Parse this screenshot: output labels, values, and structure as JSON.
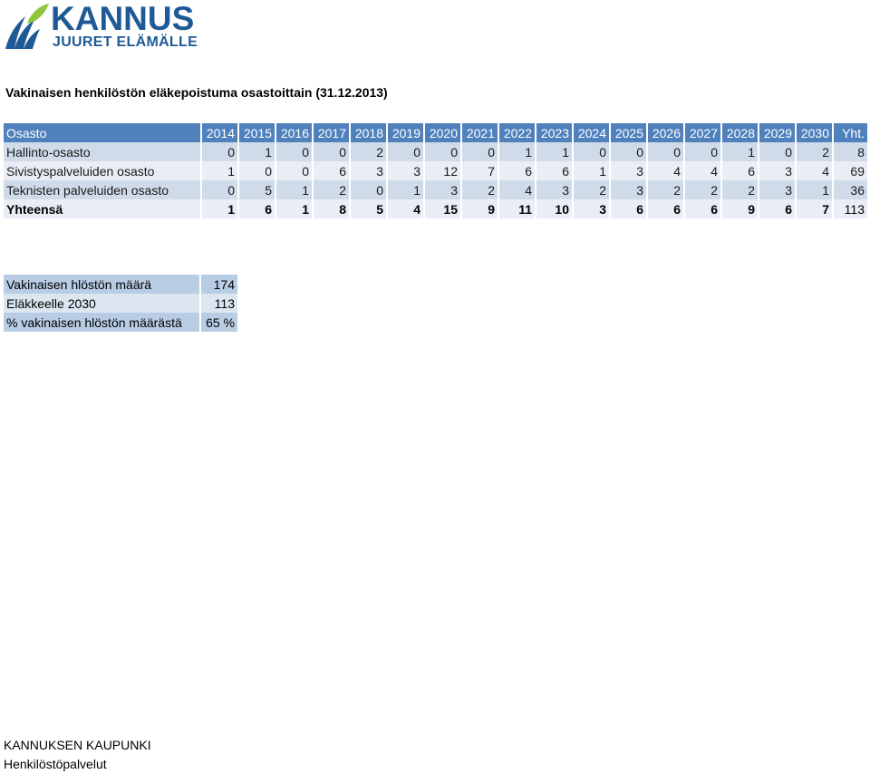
{
  "logo": {
    "name": "KANNUS",
    "slogan": "JUURET ELÄMÄLLE"
  },
  "title": "Vakinaisen henkilöstön eläkepoistuma osastoittain (31.12.2013)",
  "table": {
    "headers": [
      "Osasto",
      "2014",
      "2015",
      "2016",
      "2017",
      "2018",
      "2019",
      "2020",
      "2021",
      "2022",
      "2023",
      "2024",
      "2025",
      "2026",
      "2027",
      "2028",
      "2029",
      "2030",
      "Yht."
    ],
    "rows": [
      [
        "Hallinto-osasto",
        "0",
        "1",
        "0",
        "0",
        "2",
        "0",
        "0",
        "0",
        "1",
        "1",
        "0",
        "0",
        "0",
        "0",
        "1",
        "0",
        "2",
        "8"
      ],
      [
        "Sivistyspalveluiden osasto",
        "1",
        "0",
        "0",
        "6",
        "3",
        "3",
        "12",
        "7",
        "6",
        "6",
        "1",
        "3",
        "4",
        "4",
        "6",
        "3",
        "4",
        "69"
      ],
      [
        "Teknisten palveluiden osasto",
        "0",
        "5",
        "1",
        "2",
        "0",
        "1",
        "3",
        "2",
        "4",
        "3",
        "2",
        "3",
        "2",
        "2",
        "2",
        "3",
        "1",
        "36"
      ],
      [
        "Yhteensä",
        "1",
        "6",
        "1",
        "8",
        "5",
        "4",
        "15",
        "9",
        "11",
        "10",
        "3",
        "6",
        "6",
        "6",
        "9",
        "6",
        "7",
        "113"
      ]
    ]
  },
  "summary": {
    "rows": [
      {
        "label": "Vakinaisen hlöstön määrä",
        "value": "174"
      },
      {
        "label": "Eläkkeelle 2030",
        "value": "113"
      },
      {
        "label": "% vakinaisen hlöstön määrästä",
        "value": "65 %"
      }
    ]
  },
  "footer": {
    "line1": "KANNUKSEN KAUPUNKI",
    "line2": "Henkilöstöpalvelut"
  },
  "colors": {
    "header_bg": "#4f81bd",
    "row_odd": "#d0dbe9",
    "row_even": "#e9eef6",
    "logo_blue": "#1f5a96",
    "logo_green": "#8cc63f"
  }
}
